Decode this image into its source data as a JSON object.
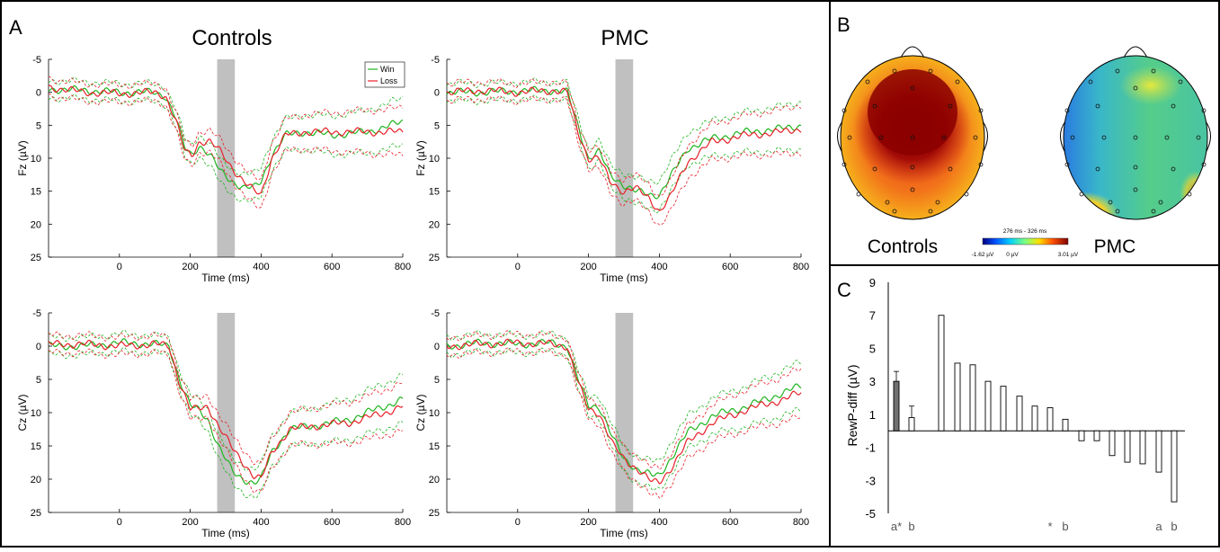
{
  "panel_labels": {
    "a": "A",
    "b": "B",
    "c": "C"
  },
  "erp": {
    "col_titles": [
      "Controls",
      "PMC"
    ],
    "xlabel": "Time (ms)",
    "ylabels": [
      "Fz (µV)",
      "Cz (µV)"
    ],
    "xticks": [
      "0",
      "200",
      "400",
      "600",
      "800"
    ],
    "yticks": [
      "-5",
      "0",
      "5",
      "10",
      "15",
      "20",
      "25"
    ],
    "legend": {
      "win": "Win",
      "loss": "Loss"
    }
  },
  "topo": {
    "labels": [
      "Controls",
      "PMC"
    ],
    "time_window": "276 ms - 326 ms",
    "colorbar_min": "-1.62 µV",
    "colorbar_mid": "0 µV",
    "colorbar_max": "3.01 µV"
  },
  "bars": {
    "ylabel": "RewP-diff (µV)",
    "yticks": [
      "9",
      "7",
      "5",
      "3",
      "1",
      "-1",
      "-3",
      "-5"
    ],
    "annotations": [
      {
        "text": "a*",
        "index": 2
      },
      {
        "text": "b",
        "index": 3
      },
      {
        "text": "*",
        "index": 11
      },
      {
        "text": "b",
        "index": 12
      },
      {
        "text": "a",
        "index": 18
      },
      {
        "text": "b",
        "index": 19
      }
    ]
  },
  "colors": {
    "win": "#1fb51f",
    "loss": "#e8202a",
    "highlight": "#c0c0c0",
    "group_bar": "#707070"
  },
  "chart_data": [
    {
      "type": "line",
      "title": "Controls",
      "ylabel": "Fz (µV)",
      "xlabel": "Time (ms)",
      "xlim": [
        -200,
        800
      ],
      "ylim": [
        -5,
        25
      ],
      "y_inverted": true,
      "highlight_window": [
        276,
        326
      ],
      "series": [
        {
          "name": "Win",
          "x": [
            -200,
            -100,
            0,
            100,
            130,
            160,
            185,
            205,
            225,
            255,
            285,
            320,
            350,
            380,
            400,
            430,
            470,
            520,
            600,
            700,
            800
          ],
          "y": [
            -0.5,
            -0.3,
            0,
            0,
            0.5,
            4,
            8.5,
            9.5,
            8,
            9.5,
            12,
            13.5,
            14.5,
            14.5,
            13.5,
            9.5,
            6.5,
            6,
            6.5,
            6,
            4.5
          ]
        },
        {
          "name": "Loss",
          "x": [
            -200,
            -100,
            0,
            100,
            130,
            160,
            185,
            205,
            225,
            255,
            285,
            320,
            350,
            380,
            400,
            430,
            470,
            520,
            600,
            700,
            800
          ],
          "y": [
            -0.8,
            0,
            0.2,
            0,
            0.5,
            4.5,
            9,
            9.5,
            7.5,
            7.5,
            9,
            11.5,
            13.5,
            15,
            15.5,
            10,
            6.5,
            6,
            6,
            6,
            6
          ]
        }
      ]
    },
    {
      "type": "line",
      "title": "PMC",
      "ylabel": "Fz (µV)",
      "xlabel": "Time (ms)",
      "xlim": [
        -200,
        800
      ],
      "ylim": [
        -5,
        25
      ],
      "y_inverted": true,
      "highlight_window": [
        276,
        326
      ],
      "series": [
        {
          "name": "Win",
          "x": [
            -200,
            -100,
            0,
            100,
            140,
            170,
            200,
            230,
            260,
            300,
            330,
            370,
            400,
            430,
            480,
            550,
            650,
            750,
            800
          ],
          "y": [
            0,
            0,
            -0.2,
            -0.3,
            0,
            5,
            10,
            9,
            12.5,
            14,
            15,
            15.5,
            15.5,
            13,
            8.5,
            7,
            6,
            5.5,
            5
          ]
        },
        {
          "name": "Loss",
          "x": [
            -200,
            -100,
            0,
            100,
            140,
            170,
            200,
            230,
            260,
            300,
            330,
            370,
            400,
            430,
            480,
            550,
            650,
            750,
            800
          ],
          "y": [
            0,
            -0.3,
            0,
            -0.3,
            0,
            6,
            10,
            10,
            13.5,
            15,
            14.5,
            16,
            18,
            16,
            10.5,
            7.5,
            6.5,
            6,
            5.5
          ]
        }
      ]
    },
    {
      "type": "line",
      "title": "",
      "ylabel": "Cz (µV)",
      "xlabel": "Time (ms)",
      "xlim": [
        -200,
        800
      ],
      "ylim": [
        -5,
        25
      ],
      "y_inverted": true,
      "highlight_window": [
        276,
        326
      ],
      "series": [
        {
          "name": "Win",
          "x": [
            -200,
            -100,
            0,
            100,
            140,
            170,
            200,
            220,
            250,
            280,
            320,
            350,
            380,
            400,
            430,
            480,
            550,
            650,
            750,
            800
          ],
          "y": [
            0,
            0,
            -0.5,
            -0.3,
            0,
            5,
            9,
            9.5,
            11,
            15,
            19,
            20,
            20.5,
            20,
            16,
            12.5,
            12,
            11,
            9,
            8
          ]
        },
        {
          "name": "Loss",
          "x": [
            -200,
            -100,
            0,
            100,
            140,
            170,
            200,
            220,
            250,
            280,
            320,
            350,
            380,
            400,
            430,
            480,
            550,
            650,
            750,
            800
          ],
          "y": [
            -0.3,
            -0.3,
            0,
            -0.3,
            0,
            5.5,
            9.5,
            9.5,
            9,
            12,
            15.5,
            17.5,
            19.5,
            20,
            16,
            12.5,
            12,
            11.5,
            10,
            9
          ]
        }
      ]
    },
    {
      "type": "line",
      "title": "",
      "ylabel": "Cz (µV)",
      "xlabel": "Time (ms)",
      "xlim": [
        -200,
        800
      ],
      "ylim": [
        -5,
        25
      ],
      "y_inverted": true,
      "highlight_window": [
        276,
        326
      ],
      "series": [
        {
          "name": "Win",
          "x": [
            -200,
            -100,
            0,
            100,
            140,
            170,
            200,
            230,
            270,
            300,
            340,
            380,
            400,
            430,
            480,
            550,
            650,
            750,
            800
          ],
          "y": [
            0,
            -0.5,
            -0.3,
            -0.5,
            0,
            5,
            9,
            9,
            14,
            17,
            18.5,
            19.5,
            19.5,
            17,
            13,
            10.5,
            9,
            7,
            6
          ]
        },
        {
          "name": "Loss",
          "x": [
            -200,
            -100,
            0,
            100,
            140,
            170,
            200,
            230,
            270,
            300,
            340,
            380,
            400,
            430,
            480,
            550,
            650,
            750,
            800
          ],
          "y": [
            0,
            -0.3,
            -0.5,
            -0.3,
            0,
            5.5,
            9.5,
            10,
            15,
            17,
            18.5,
            20.5,
            20.5,
            18.5,
            14.5,
            11.5,
            9.5,
            8,
            7
          ]
        }
      ]
    },
    {
      "type": "bar",
      "ylabel": "RewP-diff (µV)",
      "ylim": [
        -5,
        9
      ],
      "values": [
        3.0,
        0.8,
        7.0,
        4.1,
        4.0,
        3.0,
        2.7,
        2.1,
        1.5,
        1.4,
        0.7,
        -0.6,
        -0.6,
        -1.5,
        -1.9,
        -2.0,
        -2.5,
        -4.3
      ],
      "group_means": {
        "values": [
          3.0,
          0.8
        ],
        "error": [
          0.6,
          0.7
        ]
      }
    }
  ]
}
